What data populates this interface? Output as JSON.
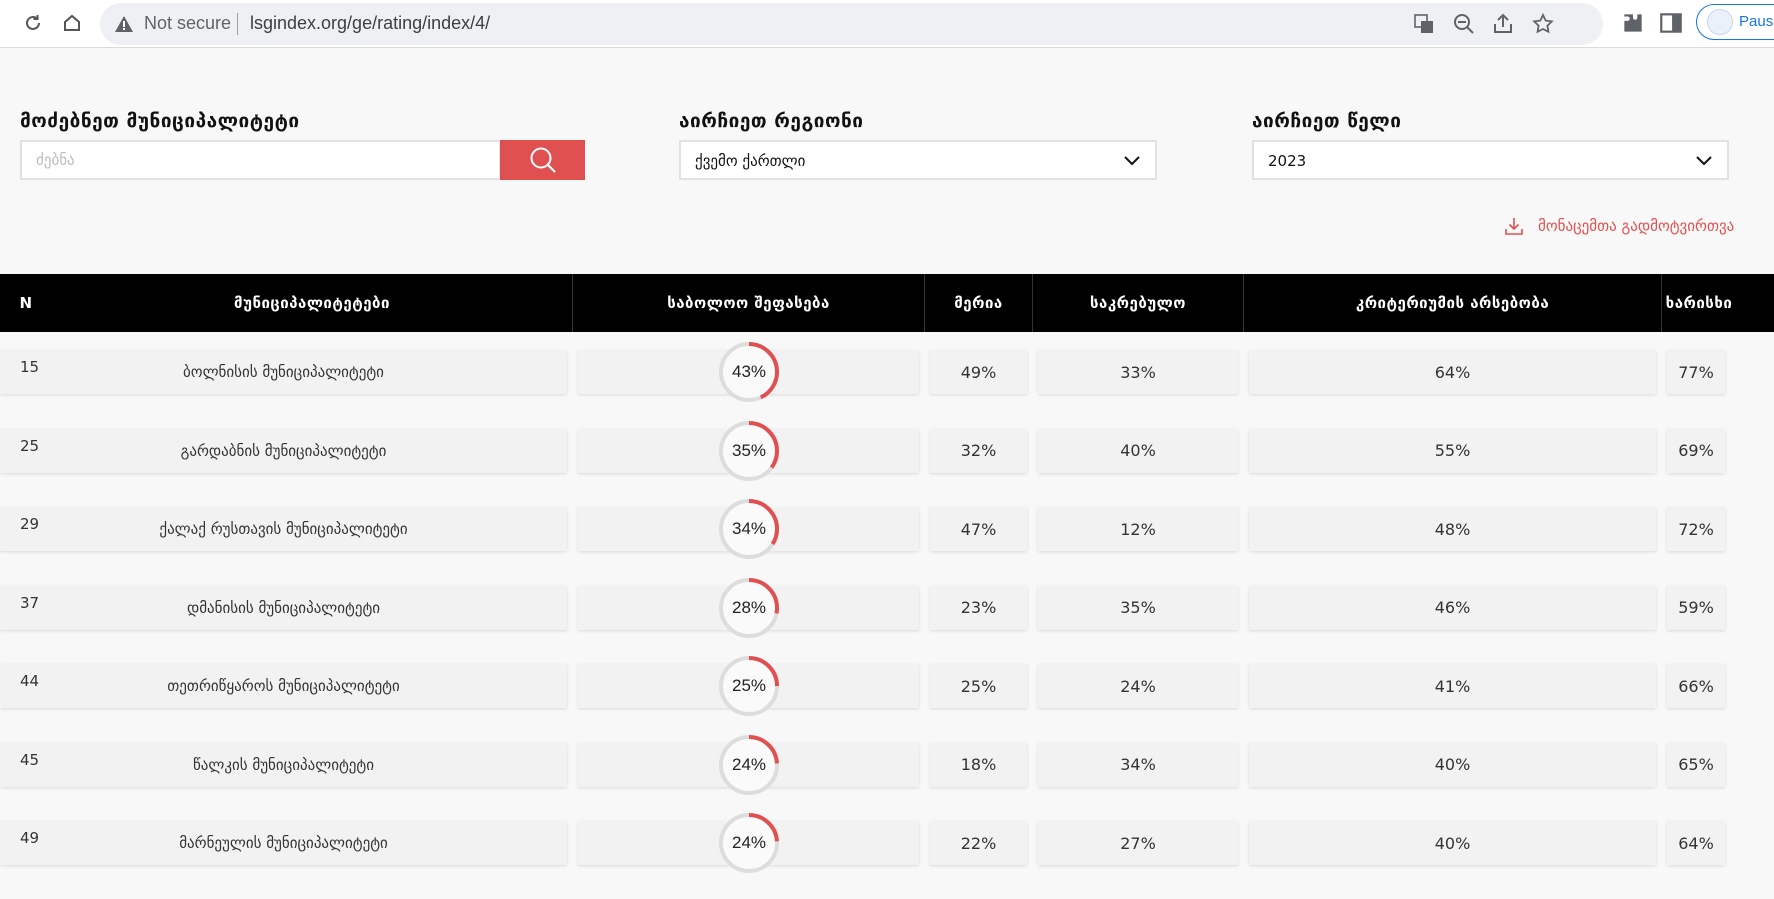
{
  "browser": {
    "security_label": "Not secure",
    "url": "lsgindex.org/ge/rating/index/4/",
    "pause_label": "Pause"
  },
  "filters": {
    "search_label": "მოძებნეთ მუნიციპალიტეტი",
    "search_placeholder": "ძებნა",
    "region_label": "აირჩიეთ რეგიონი",
    "region_value": "ქვემო ქართლი",
    "year_label": "აირჩიეთ წელი",
    "year_value": "2023",
    "download_label": "მონაცემთა გადმოტვირთვა"
  },
  "table": {
    "headers": {
      "n": "N",
      "municipality": "მუნიციპალიტეტები",
      "total": "საბოლოო შეფასება",
      "meria": "მერია",
      "sakrebulo": "საკრებულო",
      "criteria": "კრიტერიუმის არსებობა",
      "quality": "ხარისხი"
    },
    "rows": [
      {
        "n": "15",
        "name": "ბოლნისის მუნიციპალიტეტი",
        "total": "43%",
        "total_value": 43,
        "meria": "49%",
        "sakrebulo": "33%",
        "criteria": "64%",
        "quality": "77%"
      },
      {
        "n": "25",
        "name": "გარდაბნის მუნიციპალიტეტი",
        "total": "35%",
        "total_value": 35,
        "meria": "32%",
        "sakrebulo": "40%",
        "criteria": "55%",
        "quality": "69%"
      },
      {
        "n": "29",
        "name": "ქალაქ რუსთავის მუნიციპალიტეტი",
        "total": "34%",
        "total_value": 34,
        "meria": "47%",
        "sakrebulo": "12%",
        "criteria": "48%",
        "quality": "72%"
      },
      {
        "n": "37",
        "name": "დმანისის მუნიციპალიტეტი",
        "total": "28%",
        "total_value": 28,
        "meria": "23%",
        "sakrebulo": "35%",
        "criteria": "46%",
        "quality": "59%"
      },
      {
        "n": "44",
        "name": "თეთრიწყაროს მუნიციპალიტეტი",
        "total": "25%",
        "total_value": 25,
        "meria": "25%",
        "sakrebulo": "24%",
        "criteria": "41%",
        "quality": "66%"
      },
      {
        "n": "45",
        "name": "წალკის მუნიციპალიტეტი",
        "total": "24%",
        "total_value": 24,
        "meria": "18%",
        "sakrebulo": "34%",
        "criteria": "40%",
        "quality": "65%"
      },
      {
        "n": "49",
        "name": "მარნეულის მუნიციპალიტეტი",
        "total": "24%",
        "total_value": 24,
        "meria": "22%",
        "sakrebulo": "27%",
        "criteria": "40%",
        "quality": "64%"
      }
    ]
  },
  "colors": {
    "accent": "#e15050",
    "gauge_track": "#dddddd"
  }
}
